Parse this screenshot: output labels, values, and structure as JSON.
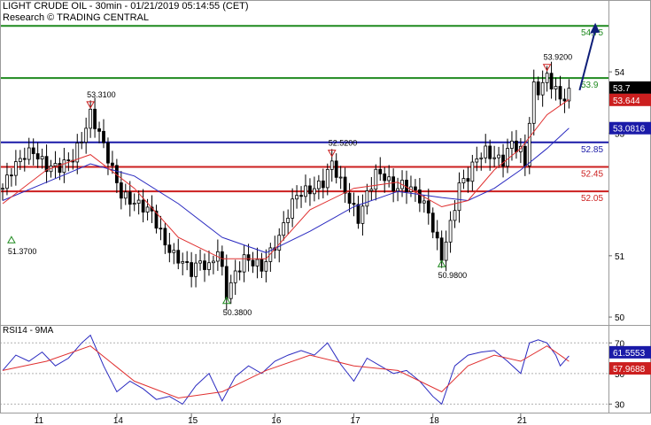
{
  "header": {
    "title": "LIGHT CRUDE OIL - 30min - 01/21/2019 05:14:55 (CET)",
    "subtitle": "Research © TRADING CENTRAL"
  },
  "rsi_panel": {
    "title": "RSI14 - 9MA"
  },
  "colors": {
    "candles": "#000000",
    "ma_fast": "#e03030",
    "ma_slow": "#2a2ac0",
    "resistance": "#1f8a1f",
    "pivot": "#1a1aa8",
    "support": "#cc1f1f",
    "arrow": "#0e1e78",
    "background": "#ffffff"
  },
  "chart_data": [
    {
      "type": "candlestick",
      "ylim": [
        49.9,
        55.1
      ],
      "y_ticks": [
        50,
        51,
        53,
        54
      ],
      "x_ticks": [
        "11",
        "14",
        "15",
        "16",
        "17",
        "18",
        "21"
      ],
      "levels": [
        {
          "value": 54.75,
          "label": "54.75",
          "role": "resistance"
        },
        {
          "value": 53.9,
          "label": "53.9",
          "role": "resistance"
        },
        {
          "value": 52.85,
          "label": "52.85",
          "role": "pivot"
        },
        {
          "value": 52.45,
          "label": "52.45",
          "role": "support"
        },
        {
          "value": 52.05,
          "label": "52.05",
          "role": "support"
        }
      ],
      "price_tags": [
        {
          "value": 53.7,
          "label": "53.7"
        },
        {
          "value": 53.644,
          "label": "53.644"
        },
        {
          "value": 53.0816,
          "label": "53.0816"
        }
      ],
      "annotations": [
        {
          "label": "51.3700",
          "value": 51.37,
          "kind": "low"
        },
        {
          "label": "53.3100",
          "value": 53.31,
          "kind": "high"
        },
        {
          "label": "50.3800",
          "value": 50.38,
          "kind": "low"
        },
        {
          "label": "52.5200",
          "value": 52.52,
          "kind": "high"
        },
        {
          "label": "50.9800",
          "value": 50.98,
          "kind": "low"
        },
        {
          "label": "53.9200",
          "value": 53.92,
          "kind": "high"
        }
      ],
      "close_path": [
        [
          0,
          52.1
        ],
        [
          2,
          52.4
        ],
        [
          5,
          52.65
        ],
        [
          7,
          52.7
        ],
        [
          10,
          52.45
        ],
        [
          13,
          52.45
        ],
        [
          16,
          52.6
        ],
        [
          18,
          52.9
        ],
        [
          20,
          53.31
        ],
        [
          22,
          53.0
        ],
        [
          24,
          52.6
        ],
        [
          27,
          52.0
        ],
        [
          29,
          51.9
        ],
        [
          32,
          51.8
        ],
        [
          34,
          51.7
        ],
        [
          37,
          51.2
        ],
        [
          39,
          51.0
        ],
        [
          41,
          50.9
        ],
        [
          43,
          50.75
        ],
        [
          45,
          50.9
        ],
        [
          47,
          50.8
        ],
        [
          49,
          51.1
        ],
        [
          51,
          50.38
        ],
        [
          53,
          50.7
        ],
        [
          55,
          50.95
        ],
        [
          57,
          50.9
        ],
        [
          59,
          50.8
        ],
        [
          61,
          51.05
        ],
        [
          63,
          51.3
        ],
        [
          65,
          51.7
        ],
        [
          67,
          52.0
        ],
        [
          69,
          52.05
        ],
        [
          71,
          52.1
        ],
        [
          73,
          52.2
        ],
        [
          75,
          52.52
        ],
        [
          77,
          52.2
        ],
        [
          79,
          51.9
        ],
        [
          81,
          51.6
        ],
        [
          83,
          52.0
        ],
        [
          85,
          52.35
        ],
        [
          87,
          52.3
        ],
        [
          89,
          52.1
        ],
        [
          91,
          52.15
        ],
        [
          93,
          52.1
        ],
        [
          95,
          51.95
        ],
        [
          97,
          51.7
        ],
        [
          99,
          51.2
        ],
        [
          100,
          50.98
        ],
        [
          102,
          51.5
        ],
        [
          104,
          52.15
        ],
        [
          106,
          52.3
        ],
        [
          108,
          52.6
        ],
        [
          110,
          52.7
        ],
        [
          112,
          52.6
        ],
        [
          114,
          52.55
        ],
        [
          116,
          52.85
        ],
        [
          118,
          52.7
        ],
        [
          119,
          52.5
        ],
        [
          120,
          53.2
        ],
        [
          121,
          53.75
        ],
        [
          122,
          53.7
        ],
        [
          124,
          53.92
        ],
        [
          126,
          53.7
        ],
        [
          127,
          53.55
        ],
        [
          129,
          53.644
        ]
      ],
      "ma_fast": [
        [
          0,
          51.85
        ],
        [
          10,
          52.4
        ],
        [
          20,
          52.65
        ],
        [
          30,
          52.1
        ],
        [
          40,
          51.3
        ],
        [
          50,
          50.95
        ],
        [
          60,
          50.95
        ],
        [
          70,
          51.75
        ],
        [
          80,
          52.1
        ],
        [
          90,
          52.2
        ],
        [
          100,
          51.8
        ],
        [
          106,
          51.9
        ],
        [
          112,
          52.4
        ],
        [
          118,
          52.75
        ],
        [
          124,
          53.3
        ],
        [
          129,
          53.55
        ]
      ],
      "ma_slow": [
        [
          0,
          51.9
        ],
        [
          10,
          52.2
        ],
        [
          20,
          52.5
        ],
        [
          30,
          52.3
        ],
        [
          40,
          51.85
        ],
        [
          50,
          51.3
        ],
        [
          60,
          51.05
        ],
        [
          70,
          51.4
        ],
        [
          80,
          51.8
        ],
        [
          90,
          52.05
        ],
        [
          100,
          51.95
        ],
        [
          106,
          51.9
        ],
        [
          112,
          52.1
        ],
        [
          118,
          52.4
        ],
        [
          124,
          52.75
        ],
        [
          129,
          53.0816
        ]
      ],
      "forecast_arrow": {
        "from": [
          129,
          53.7
        ],
        "to": [
          135,
          54.8
        ]
      }
    },
    {
      "type": "line",
      "title": "RSI14 - 9MA",
      "ylim": [
        25,
        80
      ],
      "y_ticks": [
        30,
        50,
        70
      ],
      "value_tags": [
        {
          "value": 61.5553,
          "label": "61.5553"
        },
        {
          "value": 57.9688,
          "label": "57.9688"
        }
      ],
      "rsi_path": [
        [
          0,
          52
        ],
        [
          3,
          62
        ],
        [
          6,
          58
        ],
        [
          9,
          64
        ],
        [
          12,
          55
        ],
        [
          15,
          60
        ],
        [
          18,
          70
        ],
        [
          20,
          75
        ],
        [
          23,
          55
        ],
        [
          26,
          38
        ],
        [
          29,
          45
        ],
        [
          32,
          40
        ],
        [
          35,
          33
        ],
        [
          38,
          35
        ],
        [
          41,
          30
        ],
        [
          44,
          42
        ],
        [
          47,
          50
        ],
        [
          50,
          32
        ],
        [
          53,
          48
        ],
        [
          56,
          55
        ],
        [
          59,
          50
        ],
        [
          62,
          58
        ],
        [
          65,
          62
        ],
        [
          68,
          65
        ],
        [
          71,
          62
        ],
        [
          74,
          70
        ],
        [
          77,
          56
        ],
        [
          80,
          45
        ],
        [
          83,
          60
        ],
        [
          86,
          55
        ],
        [
          89,
          50
        ],
        [
          92,
          52
        ],
        [
          95,
          45
        ],
        [
          98,
          35
        ],
        [
          100,
          30
        ],
        [
          103,
          55
        ],
        [
          106,
          62
        ],
        [
          109,
          64
        ],
        [
          112,
          65
        ],
        [
          115,
          58
        ],
        [
          118,
          50
        ],
        [
          120,
          70
        ],
        [
          122,
          72
        ],
        [
          124,
          70
        ],
        [
          126,
          62
        ],
        [
          127,
          55
        ],
        [
          129,
          61.5553
        ]
      ],
      "rsi_ma": [
        [
          0,
          52
        ],
        [
          10,
          58
        ],
        [
          20,
          68
        ],
        [
          30,
          45
        ],
        [
          40,
          34
        ],
        [
          50,
          38
        ],
        [
          60,
          52
        ],
        [
          70,
          62
        ],
        [
          80,
          55
        ],
        [
          90,
          52
        ],
        [
          100,
          38
        ],
        [
          106,
          55
        ],
        [
          112,
          62
        ],
        [
          118,
          58
        ],
        [
          124,
          68
        ],
        [
          129,
          57.9688
        ]
      ]
    }
  ]
}
